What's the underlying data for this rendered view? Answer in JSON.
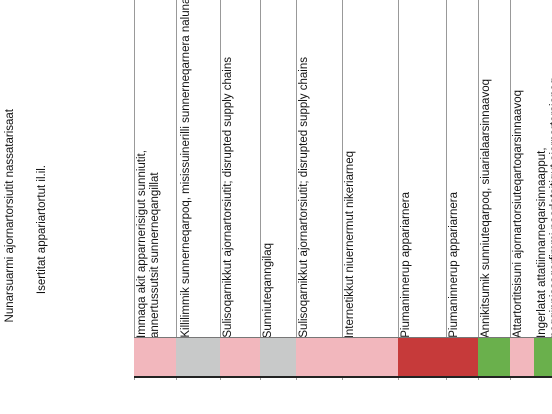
{
  "header": {
    "title": "Nunarsuarmi ajornartorsiutit nassatarisaat",
    "subtitle": "Isertitat appariartortut il.il."
  },
  "columns": [
    {
      "label": "Immaqa akit apparnerisigut sunniutit, annertussutsit sunnerneqangillat",
      "color": "#f2b7bd"
    },
    {
      "label": "Killilimmik sunnerneqarpoq, misissuinerilli sunnerneqarnera nalunaarsorsimanngilaa",
      "color": "#c8c9c9"
    },
    {
      "label": "Sulisoqarnikkut ajornartorsiutit; disrupted supply chains",
      "color": "#f2b7bd"
    },
    {
      "label": "Sunniuteqanngilaq",
      "color": "#c8c9c9"
    },
    {
      "label": "Sulisoqarnikkut ajornartorsiutit; disrupted supply chains",
      "color": "#f2b7bd"
    },
    {
      "label": "Internetikkut niuernermut nikeriarneq",
      "color": "#f2b7bd"
    },
    {
      "label": "Piumaninnerup appariarnera",
      "color": "#c63a3a"
    },
    {
      "label": "Piumaninnerup appariarnera",
      "color": "#c63a3a"
    },
    {
      "label": "Annikitsumik sunniuteqarpoq, siuarialaarsinnaavoq",
      "color": "#6ab04c"
    },
    {
      "label": "Attartortitsisuni ajornartorsiuteqartoqarsinnaavoq",
      "color": "#f2b7bd"
    },
    {
      "label": "Ingerlatat attatiinnarneqarsinnaapput, peqqinnissaqarfimmi paarlatsitigut ajornartorsioneq",
      "color": "#6ab04c"
    }
  ]
}
